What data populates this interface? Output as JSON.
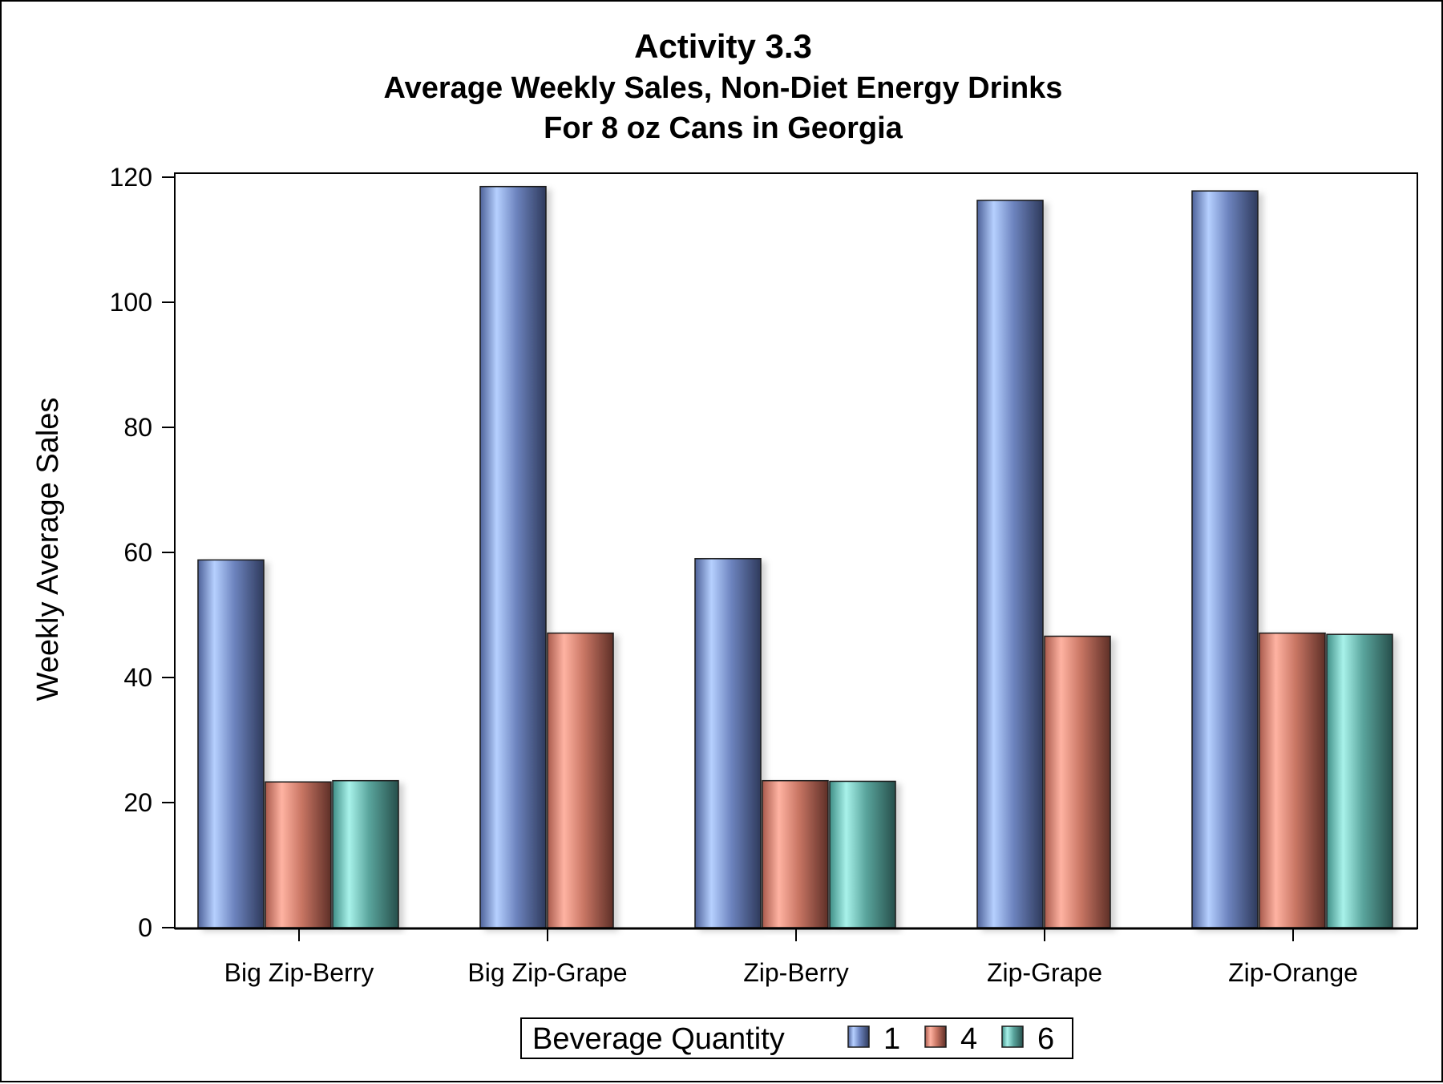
{
  "chart_data": {
    "type": "bar",
    "title": "Activity 3.3",
    "subtitle": [
      "Average Weekly Sales, Non-Diet Energy Drinks",
      "For 8 oz Cans in Georgia"
    ],
    "xlabel": "",
    "ylabel": "Weekly Average Sales",
    "ylim": [
      0,
      120
    ],
    "yticks": [
      0,
      20,
      40,
      60,
      80,
      100,
      120
    ],
    "categories": [
      "Big Zip-Berry",
      "Big Zip-Grape",
      "Zip-Berry",
      "Zip-Grape",
      "Zip-Orange"
    ],
    "series": [
      {
        "name": "1",
        "color": "#7a9ae0",
        "values": [
          58.8,
          118.5,
          59.0,
          116.3,
          117.8
        ]
      },
      {
        "name": "4",
        "color": "#e8806c",
        "values": [
          23.3,
          47.1,
          23.5,
          46.6,
          47.1
        ]
      },
      {
        "name": "6",
        "color": "#6fd0c6",
        "values": [
          23.5,
          null,
          23.4,
          null,
          46.9
        ]
      }
    ],
    "legend": {
      "title": "Beverage Quantity",
      "placement": "bottom-center"
    },
    "grid": false
  }
}
